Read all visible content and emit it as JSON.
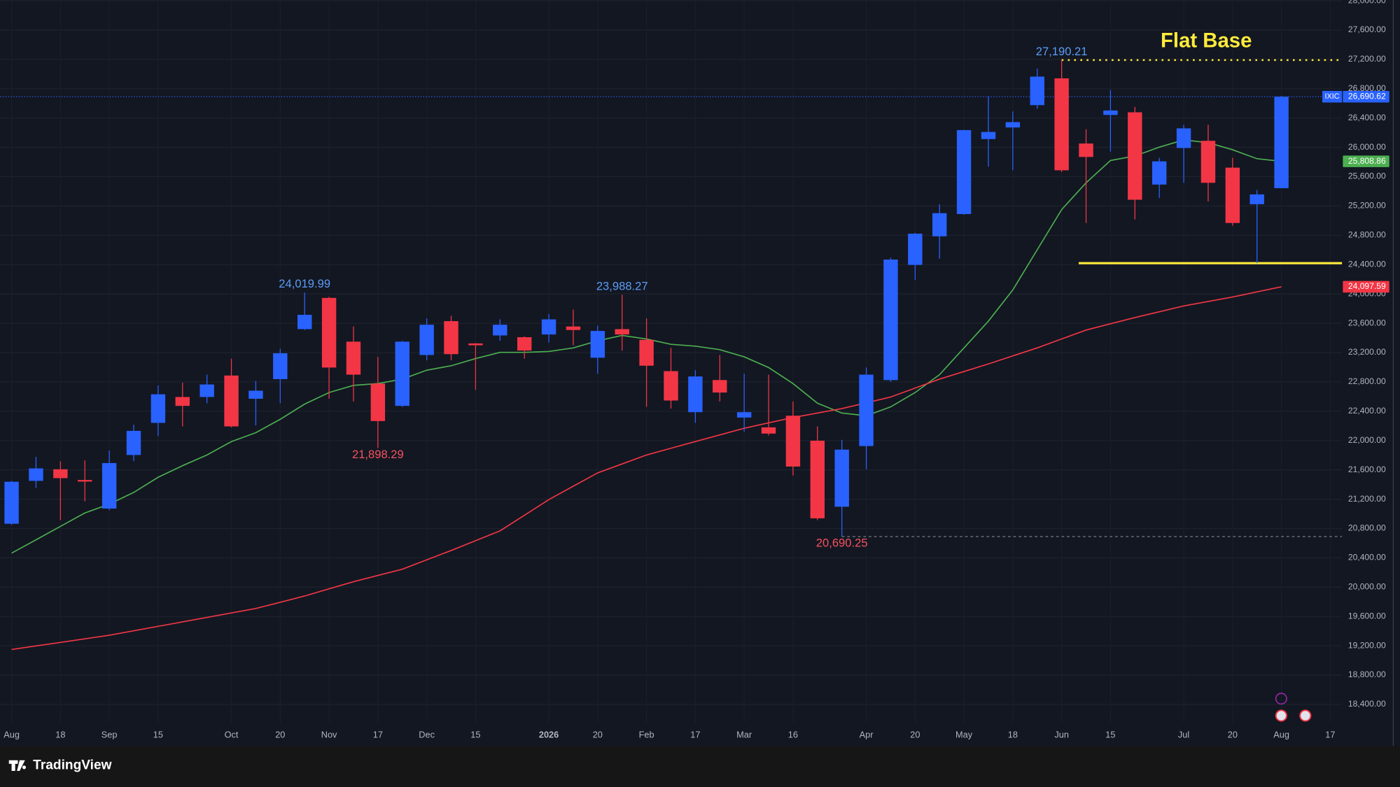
{
  "chart_data": {
    "type": "candlestick",
    "symbol": "IXIC",
    "title": "Flat Base",
    "brand": "TradingView",
    "up_color": "#2962ff",
    "down_color": "#f23645",
    "annotation_color": "#ffeb3b",
    "grid": true,
    "categories": [
      "Aug",
      null,
      "18",
      null,
      "Sep",
      null,
      "15",
      null,
      null,
      "Oct",
      null,
      "20",
      null,
      "Nov",
      null,
      "17",
      null,
      "Dec",
      null,
      "15",
      null,
      null,
      "2026",
      null,
      "20",
      null,
      "Feb",
      null,
      "17",
      null,
      "Mar",
      null,
      "16",
      null,
      null,
      "Apr",
      null,
      "20",
      null,
      "May",
      null,
      "18",
      null,
      "Jun",
      null,
      "15",
      null,
      null,
      "Jul",
      null,
      "20",
      null,
      "Aug",
      null,
      "17"
    ],
    "open": {
      "values": [
        20865,
        21450,
        21608,
        21462,
        21072,
        21803,
        22241,
        22594,
        22594,
        22887,
        22570,
        22838,
        23520,
        23946,
        23349,
        22777,
        22473,
        23167,
        23629,
        23325,
        23434,
        23410,
        23447,
        23556,
        23130,
        23520,
        23374,
        22947,
        22387,
        22825,
        22314,
        22180,
        22339,
        21998,
        21097,
        21925,
        22825,
        24396,
        24786,
        25090,
        26113,
        26271,
        26576,
        26941,
        26052,
        26442,
        26478,
        25492,
        25991,
        26089,
        25723,
        25224,
        25443,
        null,
        null
      ]
    },
    "high": {
      "values": [
        21450,
        21778,
        21718,
        21730,
        21864,
        22217,
        22753,
        22789,
        22899,
        23118,
        22813,
        23252,
        24019.99,
        23960,
        23556,
        23142,
        23360,
        23666,
        23702,
        23330,
        23654,
        23420,
        23727,
        23787,
        23568,
        23988.27,
        23666,
        23264,
        22960,
        23167,
        22911,
        22899,
        22533,
        22193,
        22010,
        22996,
        24494,
        24834,
        25224,
        26240,
        26697,
        26490,
        27075,
        27190.21,
        26247,
        26783,
        26551,
        25857,
        26308,
        26308,
        25857,
        25419,
        26700,
        null,
        null
      ],
      "value_labels": [
        null,
        null,
        null,
        null,
        null,
        null,
        null,
        null,
        null,
        null,
        null,
        null,
        "24,019.99",
        null,
        null,
        null,
        null,
        null,
        null,
        null,
        null,
        null,
        null,
        null,
        null,
        "23,988.27",
        null,
        null,
        null,
        null,
        null,
        null,
        null,
        null,
        null,
        null,
        null,
        null,
        null,
        null,
        null,
        null,
        null,
        "27,190.21",
        null,
        null,
        null,
        null,
        null,
        null,
        null,
        null,
        null,
        null,
        null
      ]
    },
    "low": {
      "values": [
        20850,
        21352,
        20914,
        21170,
        21048,
        21718,
        22059,
        22193,
        22509,
        22180,
        22205,
        22509,
        23508,
        22570,
        22533,
        21898.29,
        22460,
        23094,
        23094,
        22692,
        23361,
        23118,
        23337,
        23300,
        22911,
        23228,
        22460,
        22436,
        22241,
        22533,
        22120,
        22070,
        21523,
        20914,
        20690.25,
        21608,
        22800,
        24189,
        24481,
        25080,
        25735,
        25687,
        26527,
        25662,
        24968,
        25942,
        25017,
        25310,
        25516,
        25261,
        24932,
        24420,
        25440,
        null,
        null
      ],
      "value_labels": [
        null,
        null,
        null,
        null,
        null,
        null,
        null,
        null,
        null,
        null,
        null,
        null,
        null,
        null,
        null,
        "21,898.29",
        null,
        null,
        null,
        null,
        null,
        null,
        null,
        null,
        null,
        null,
        null,
        null,
        null,
        null,
        null,
        null,
        null,
        null,
        "20,690.25",
        null,
        null,
        null,
        null,
        null,
        null,
        null,
        null,
        null,
        null,
        null,
        null,
        null,
        null,
        null,
        null,
        null,
        null,
        null,
        null
      ]
    },
    "close": {
      "values": [
        21438,
        21620,
        21487,
        21440,
        21693,
        22132,
        22631,
        22473,
        22765,
        22193,
        22680,
        23191,
        23715,
        22996,
        22899,
        22266,
        23349,
        23580,
        23179,
        23300,
        23580,
        23228,
        23653,
        23508,
        23495,
        23447,
        23021,
        22546,
        22874,
        22655,
        22387,
        22095,
        21645,
        20939,
        21876,
        22899,
        24469,
        24822,
        25102,
        26235,
        26210,
        26344,
        26965,
        25687,
        25869,
        26503,
        25285,
        25809,
        26259,
        25516,
        24968,
        25358,
        26690.62,
        null,
        null
      ],
      "value_labels": [
        null,
        null,
        null,
        null,
        null,
        null,
        null,
        null,
        null,
        null,
        null,
        null,
        null,
        null,
        null,
        null,
        null,
        null,
        null,
        null,
        null,
        null,
        null,
        null,
        null,
        null,
        null,
        null,
        null,
        null,
        null,
        null,
        null,
        null,
        null,
        null,
        null,
        null,
        null,
        null,
        null,
        null,
        null,
        null,
        null,
        null,
        null,
        null,
        null,
        null,
        null,
        null,
        "26,690.62",
        null,
        null
      ]
    },
    "moving_averages": [
      {
        "color": "#4caf50",
        "values": [
          20464,
          20646,
          20829,
          21012,
          21133,
          21292,
          21499,
          21657,
          21803,
          21986,
          22107,
          22290,
          22497,
          22655,
          22753,
          22777,
          22838,
          22960,
          23020,
          23118,
          23203,
          23203,
          23215,
          23264,
          23361,
          23434,
          23386,
          23313,
          23288,
          23240,
          23142,
          22996,
          22777,
          22509,
          22375,
          22339,
          22460,
          22655,
          22899,
          23264,
          23629,
          24055,
          24603,
          25151,
          25516,
          25821,
          25882,
          26003,
          26101,
          26064,
          25967,
          25845,
          25808.86,
          null,
          null
        ],
        "value_labels": [
          null,
          null,
          null,
          null,
          null,
          null,
          null,
          null,
          null,
          null,
          null,
          null,
          null,
          null,
          null,
          null,
          null,
          null,
          null,
          null,
          null,
          null,
          null,
          null,
          null,
          null,
          null,
          null,
          null,
          null,
          null,
          null,
          null,
          null,
          null,
          null,
          null,
          null,
          null,
          null,
          null,
          null,
          null,
          null,
          null,
          null,
          null,
          null,
          null,
          null,
          null,
          null,
          "25,808.86",
          null,
          null
        ]
      },
      {
        "color": "#f23645",
        "values": [
          19149,
          19198,
          19246,
          19295,
          19344,
          19405,
          19465,
          19526,
          19587,
          19648,
          19709,
          19794,
          19879,
          19977,
          20074,
          20160,
          20245,
          20373,
          20500,
          20634,
          20768,
          20981,
          21194,
          21377,
          21559,
          21681,
          21803,
          21895,
          21986,
          22077,
          22168,
          22241,
          22314,
          22375,
          22436,
          22515,
          22594,
          22716,
          22838,
          22942,
          23045,
          23155,
          23264,
          23386,
          23507,
          23593,
          23678,
          23757,
          23836,
          23897,
          23958,
          24028,
          24097.59,
          null,
          null
        ],
        "value_labels": [
          null,
          null,
          null,
          null,
          null,
          null,
          null,
          null,
          null,
          null,
          null,
          null,
          null,
          null,
          null,
          null,
          null,
          null,
          null,
          null,
          null,
          null,
          null,
          null,
          null,
          null,
          null,
          null,
          null,
          null,
          null,
          null,
          null,
          null,
          null,
          null,
          null,
          null,
          null,
          null,
          null,
          null,
          null,
          null,
          null,
          null,
          null,
          null,
          null,
          null,
          null,
          null,
          "24,097.59",
          null,
          null
        ]
      }
    ],
    "ylim": [
      18150,
      28010
    ],
    "yticks": [
      {
        "value": 18400,
        "label": "18,400.00"
      },
      {
        "value": 18800,
        "label": "18,800.00"
      },
      {
        "value": 19200,
        "label": "19,200.00"
      },
      {
        "value": 19600,
        "label": "19,600.00"
      },
      {
        "value": 20000,
        "label": "20,000.00"
      },
      {
        "value": 20400,
        "label": "20,400.00"
      },
      {
        "value": 20800,
        "label": "20,800.00"
      },
      {
        "value": 21200,
        "label": "21,200.00"
      },
      {
        "value": 21600,
        "label": "21,600.00"
      },
      {
        "value": 22000,
        "label": "22,000.00"
      },
      {
        "value": 22400,
        "label": "22,400.00"
      },
      {
        "value": 22800,
        "label": "22,800.00"
      },
      {
        "value": 23200,
        "label": "23,200.00"
      },
      {
        "value": 23600,
        "label": "23,600.00"
      },
      {
        "value": 24000,
        "label": "24,000.00"
      },
      {
        "value": 24400,
        "label": "24,400.00"
      },
      {
        "value": 24800,
        "label": "24,800.00"
      },
      {
        "value": 25200,
        "label": "25,200.00"
      },
      {
        "value": 25600,
        "label": "25,600.00"
      },
      {
        "value": 26000,
        "label": "26,000.00"
      },
      {
        "value": 26400,
        "label": "26,400.00"
      },
      {
        "value": 26800,
        "label": "26,800.00"
      },
      {
        "value": 27200,
        "label": "27,200.00"
      },
      {
        "value": 27600,
        "label": "27,600.00"
      },
      {
        "value": 28000,
        "label": "28,000.00"
      }
    ]
  }
}
